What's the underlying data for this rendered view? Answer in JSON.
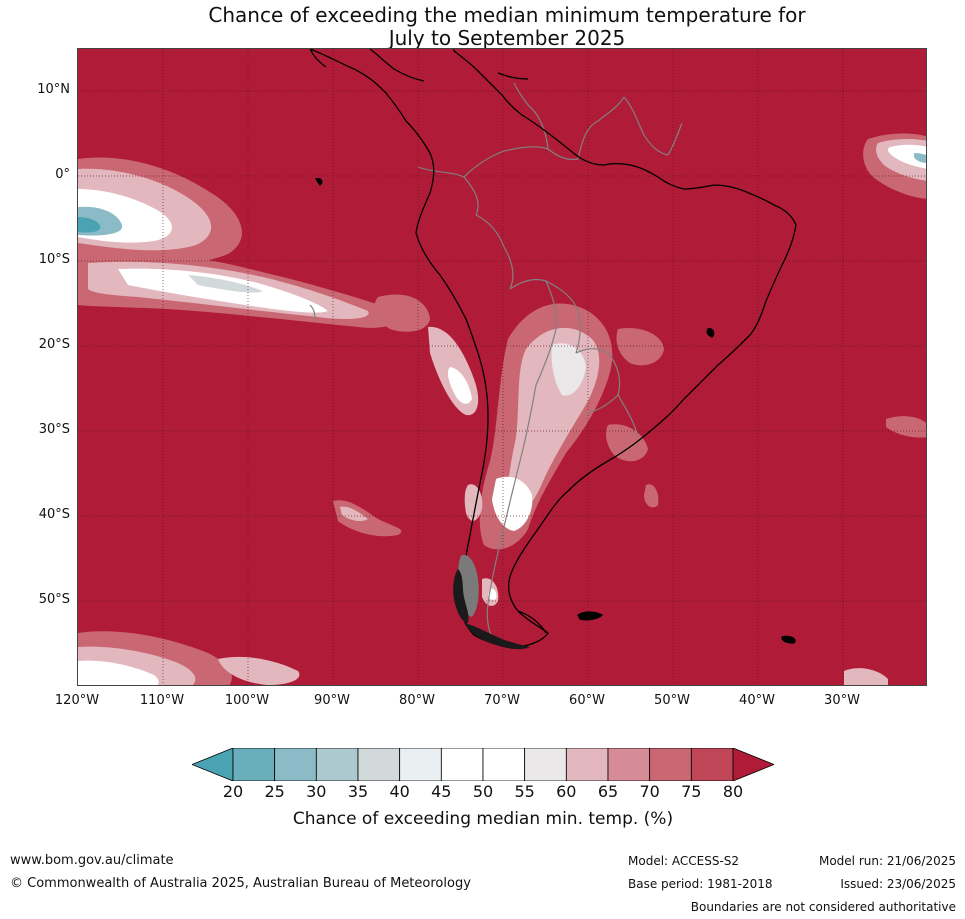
{
  "title": {
    "line1": "Chance of exceeding the median minimum temperature for",
    "line2": "July to September 2025"
  },
  "map": {
    "latitude_labels": [
      "10°N",
      "0°",
      "10°S",
      "20°S",
      "30°S",
      "40°S",
      "50°S"
    ],
    "longitude_labels": [
      "120°W",
      "110°W",
      "100°W",
      "90°W",
      "80°W",
      "70°W",
      "60°W",
      "50°W",
      "40°W",
      "30°W"
    ],
    "colors": {
      "dominant": "#b01c37",
      "land_border": "#000000",
      "country_border": "#808080",
      "graticule": "#5a1020"
    }
  },
  "colorbar": {
    "ticks": [
      "20",
      "25",
      "30",
      "35",
      "40",
      "45",
      "50",
      "55",
      "60",
      "65",
      "70",
      "75",
      "80"
    ],
    "colors": [
      "#4aa3b3",
      "#6aaebb",
      "#8bbbc7",
      "#adc9d0",
      "#d2d9db",
      "#eaf0f2",
      "#ffffff",
      "#ffffff",
      "#ebe8ea",
      "#e2b7bd",
      "#d68c96",
      "#c96873",
      "#bf4657",
      "#b01c37"
    ],
    "label": "Chance of exceeding median min. temp. (%)"
  },
  "footer": {
    "website": "www.bom.gov.au/climate",
    "copyright": "© Commonwealth of Australia 2025, Australian Bureau of Meteorology",
    "model": "Model: ACCESS-S2",
    "base_period": "Base period: 1981-2018",
    "model_run": "Model run: 21/06/2025",
    "issued": "Issued: 23/06/2025",
    "disclaimer": "Boundaries are not considered authoritative"
  }
}
